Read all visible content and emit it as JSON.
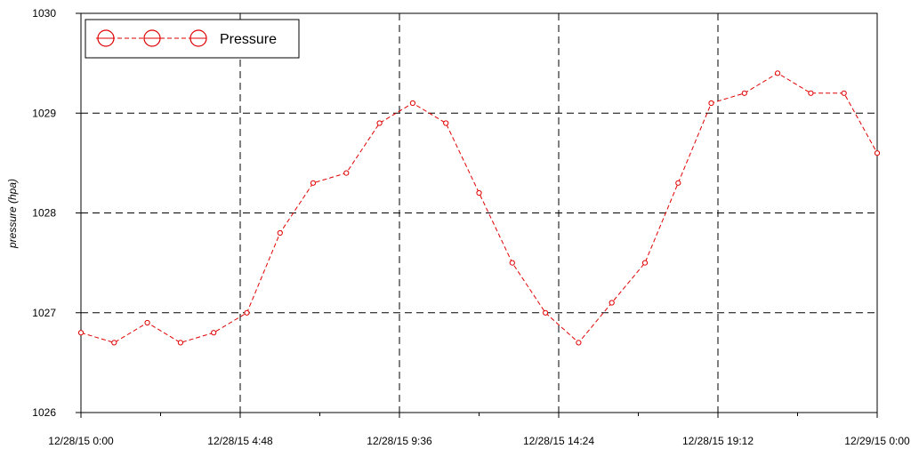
{
  "chart_data": {
    "type": "line",
    "title": "",
    "xlabel": "",
    "ylabel": "pressure (hpa)",
    "x_ticks": [
      "12/28/15 0:00",
      "12/28/15 4:48",
      "12/28/15 9:36",
      "12/28/15 14:24",
      "12/28/15 19:12",
      "12/29/15 0:00"
    ],
    "y_ticks": [
      "1026",
      "1027",
      "1028",
      "1029",
      "1030"
    ],
    "ylim": [
      1026,
      1030
    ],
    "xlim": [
      "12/28/15 0:00",
      "12/29/15 0:00"
    ],
    "grid": true,
    "legend": {
      "position": "top-left",
      "entries": [
        "Pressure"
      ]
    },
    "series": [
      {
        "name": "Pressure",
        "color": "#e00000",
        "line_style": "dashed",
        "marker": "circle",
        "x": [
          "12/28/15 0:00",
          "12/28/15 1:00",
          "12/28/15 2:00",
          "12/28/15 3:00",
          "12/28/15 4:00",
          "12/28/15 5:00",
          "12/28/15 6:00",
          "12/28/15 7:00",
          "12/28/15 8:00",
          "12/28/15 9:00",
          "12/28/15 10:00",
          "12/28/15 11:00",
          "12/28/15 12:00",
          "12/28/15 13:00",
          "12/28/15 14:00",
          "12/28/15 15:00",
          "12/28/15 16:00",
          "12/28/15 17:00",
          "12/28/15 18:00",
          "12/28/15 19:00",
          "12/28/15 20:00",
          "12/28/15 21:00",
          "12/28/15 22:00",
          "12/28/15 23:00",
          "12/29/15 0:00"
        ],
        "values": [
          1026.8,
          1026.7,
          1026.9,
          1026.7,
          1026.8,
          1027.0,
          1027.8,
          1028.3,
          1028.4,
          1028.9,
          1029.1,
          1028.9,
          1028.2,
          1027.5,
          1027.0,
          1026.7,
          1027.1,
          1027.5,
          1028.3,
          1029.1,
          1029.2,
          1029.4,
          1029.2,
          1029.2,
          1028.6
        ]
      }
    ]
  }
}
